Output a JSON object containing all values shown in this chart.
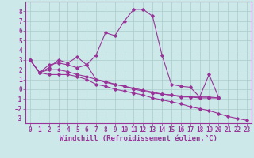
{
  "xlabel": "Windchill (Refroidissement éolien,°C)",
  "bg_color": "#cce8e8",
  "grid_color": "#aacccc",
  "line_color": "#993399",
  "xlim": [
    -0.5,
    23.5
  ],
  "ylim": [
    -3.5,
    9.0
  ],
  "xticks": [
    0,
    1,
    2,
    3,
    4,
    5,
    6,
    7,
    8,
    9,
    10,
    11,
    12,
    13,
    14,
    15,
    16,
    17,
    18,
    19,
    20,
    21,
    22,
    23
  ],
  "yticks": [
    -3,
    -2,
    -1,
    0,
    1,
    2,
    3,
    4,
    5,
    6,
    7,
    8
  ],
  "series": [
    {
      "x": [
        0,
        1,
        2,
        3,
        4,
        5,
        6,
        7,
        8,
        9,
        10,
        11,
        12,
        13,
        14,
        15,
        16,
        17,
        18,
        19,
        20,
        21,
        22,
        23
      ],
      "y": [
        3.0,
        1.7,
        2.2,
        3.0,
        2.7,
        3.3,
        2.5,
        3.5,
        5.8,
        5.5,
        7.0,
        8.2,
        8.2,
        7.5,
        3.5,
        0.5,
        0.3,
        0.2,
        -0.8,
        1.5,
        -0.8,
        null,
        null,
        null
      ]
    },
    {
      "x": [
        0,
        1,
        2,
        3,
        4,
        5,
        6,
        7,
        8,
        9,
        10,
        11,
        12,
        13,
        14,
        15,
        16,
        17,
        18,
        19,
        20,
        21,
        22,
        23
      ],
      "y": [
        3.0,
        1.7,
        2.5,
        2.7,
        2.5,
        2.2,
        2.5,
        1.0,
        0.8,
        0.5,
        0.3,
        0.1,
        -0.1,
        -0.3,
        -0.5,
        -0.6,
        -0.7,
        -0.8,
        -0.8,
        -0.8,
        -0.9,
        null,
        null,
        null
      ]
    },
    {
      "x": [
        0,
        1,
        2,
        3,
        4,
        5,
        6,
        7,
        8,
        9,
        10,
        11,
        12,
        13,
        14,
        15,
        16,
        17,
        18,
        19,
        20,
        21,
        22,
        23
      ],
      "y": [
        3.0,
        1.7,
        2.0,
        2.0,
        1.8,
        1.5,
        1.3,
        1.0,
        0.7,
        0.5,
        0.3,
        0.0,
        -0.2,
        -0.4,
        -0.5,
        -0.6,
        -0.8,
        -0.8,
        -0.9,
        -0.9,
        -0.9,
        null,
        null,
        null
      ]
    },
    {
      "x": [
        0,
        1,
        2,
        3,
        4,
        5,
        6,
        7,
        8,
        9,
        10,
        11,
        12,
        13,
        14,
        15,
        16,
        17,
        18,
        19,
        20,
        21,
        22,
        23
      ],
      "y": [
        3.0,
        1.7,
        1.5,
        1.5,
        1.5,
        1.3,
        1.0,
        0.5,
        0.3,
        0.0,
        -0.2,
        -0.4,
        -0.6,
        -0.9,
        -1.1,
        -1.3,
        -1.5,
        -1.8,
        -2.0,
        -2.2,
        -2.5,
        -2.8,
        -3.0,
        -3.2
      ]
    }
  ],
  "xlabel_fontsize": 6.5,
  "tick_fontsize": 5.5
}
